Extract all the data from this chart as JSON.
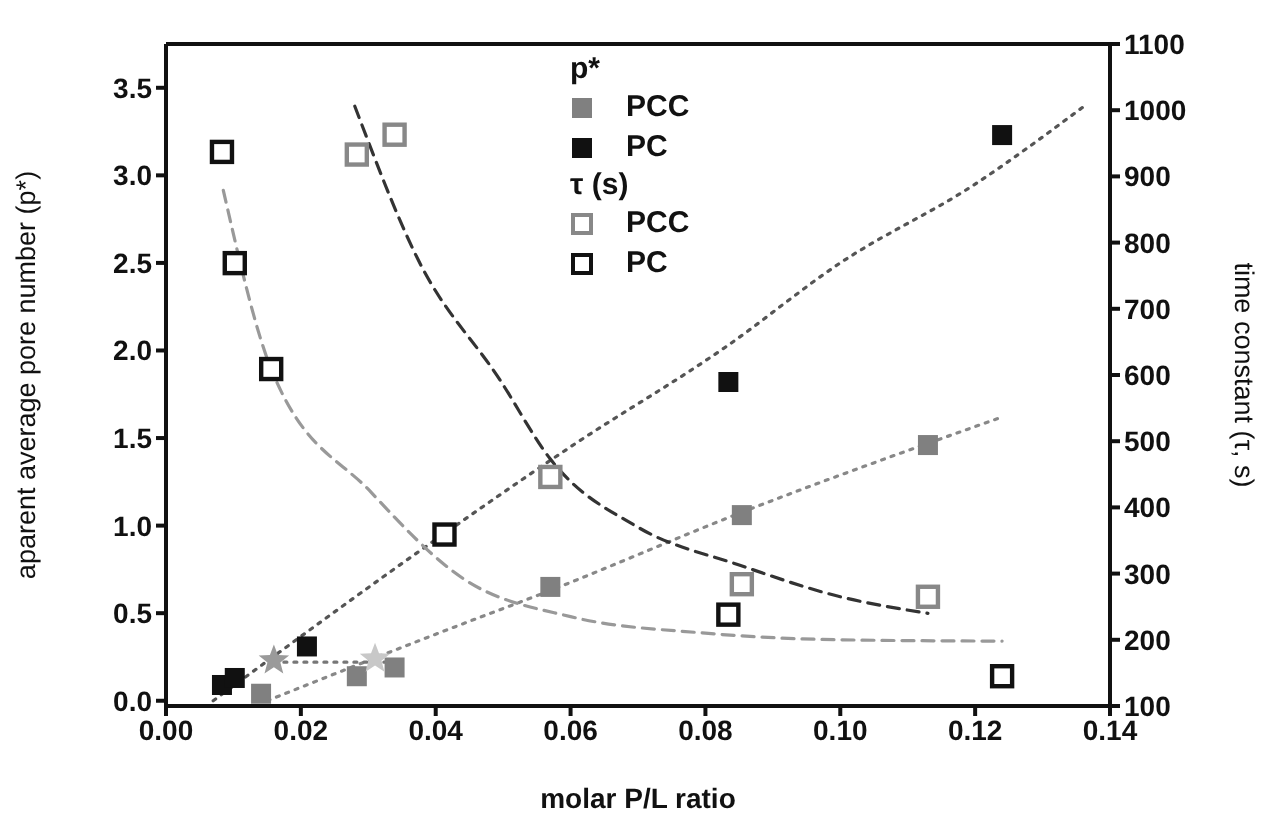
{
  "chart_data": {
    "type": "scatter",
    "xlabel": "molar P/L ratio",
    "ylabel": "aparent  average pore number (p*)",
    "y2label": "time constant (τ, s)",
    "annotations": [
      "p*",
      "τ (s)"
    ],
    "xlim": [
      0,
      0.14
    ],
    "xticks": [
      {
        "value": 0,
        "label": "0.00"
      },
      {
        "value": 0.02,
        "label": "0.02"
      },
      {
        "value": 0.04,
        "label": "0.04"
      },
      {
        "value": 0.06,
        "label": "0.06"
      },
      {
        "value": 0.08,
        "label": "0.08"
      },
      {
        "value": 0.1,
        "label": "0.10"
      },
      {
        "value": 0.12,
        "label": "0.12"
      },
      {
        "value": 0.14,
        "label": "0.14"
      }
    ],
    "ylim": [
      -0.03,
      3.75
    ],
    "yticks": [
      {
        "value": 0,
        "label": "0.0"
      },
      0.5,
      {
        "value": 1,
        "label": "1.0"
      },
      1.5,
      {
        "value": 2,
        "label": "2.0"
      },
      2.5,
      {
        "value": 3,
        "label": "3.0"
      },
      3.5
    ],
    "y2lim": [
      100,
      1100
    ],
    "y2ticks": [
      100,
      200,
      300,
      400,
      500,
      600,
      700,
      800,
      900,
      1000,
      1100
    ],
    "legend": "top",
    "marker": "square",
    "series": [
      {
        "name": "PCC",
        "color": "#808080",
        "x": [
          0.0141,
          0.0283,
          0.0339,
          0.057,
          0.0854,
          0.113
        ],
        "values": [
          0.04,
          0.14,
          0.19,
          0.65,
          1.06,
          1.46
        ]
      },
      {
        "name": "PC",
        "color": "#111111",
        "x": [
          0.0083,
          0.0102,
          0.0209,
          0.0834,
          0.124
        ],
        "values": [
          0.09,
          0.13,
          0.31,
          1.82,
          3.23
        ]
      },
      {
        "name": "PCC",
        "axis": "y2",
        "color": "#888888",
        "x": [
          0.0283,
          0.0339,
          0.057,
          0.0854,
          0.113
        ],
        "values": [
          933,
          963,
          446,
          284,
          265
        ]
      },
      {
        "name": "PC",
        "axis": "y2",
        "color": "#111111",
        "x": [
          0.0083,
          0.0102,
          0.0156,
          0.0413,
          0.0834,
          0.124
        ],
        "values": [
          937,
          769,
          609,
          359,
          238,
          145
        ]
      },
      {
        "marker": "star",
        "color": "#a0a0a0",
        "colors": [
          "#9a9a9a",
          "#c8c8c8"
        ],
        "x": [
          0.016,
          0.031
        ],
        "values": [
          0.23,
          0.24
        ]
      },
      {
        "type": "line",
        "marker": "none",
        "line_style": "dotted",
        "color": "#555555",
        "x": [
          0.007,
          0.04,
          0.06,
          0.083,
          0.1,
          0.12,
          0.136
        ],
        "values": [
          0,
          0.92,
          1.45,
          2.02,
          2.5,
          2.95,
          3.39
        ]
      },
      {
        "type": "line",
        "marker": "none",
        "line_style": "dotted",
        "color": "#888888",
        "x": [
          0.015,
          0.04,
          0.057,
          0.085,
          0.124
        ],
        "values": [
          0,
          0.38,
          0.63,
          1.07,
          1.62
        ]
      },
      {
        "type": "line",
        "marker": "none",
        "line_style": "dotted",
        "color": "#777777",
        "x": [
          0.016,
          0.034
        ],
        "values": [
          0.22,
          0.22
        ]
      },
      {
        "type": "line",
        "marker": "none",
        "axis": "y2",
        "line_style": "dashed",
        "color": "#999999",
        "x": [
          0.0085,
          0.0156,
          0.0305,
          0.044,
          0.06,
          0.08,
          0.1,
          0.124
        ],
        "values": [
          879,
          609,
          422,
          293,
          235,
          210,
          200,
          198
        ]
      },
      {
        "type": "line",
        "marker": "none",
        "axis": "y2",
        "line_style": "dashed",
        "color": "#333333",
        "x": [
          0.028,
          0.0374,
          0.0495,
          0.057,
          0.07,
          0.085,
          0.1,
          0.113
        ],
        "values": [
          1006,
          774,
          593,
          473,
          370,
          313,
          265,
          240
        ]
      }
    ]
  }
}
